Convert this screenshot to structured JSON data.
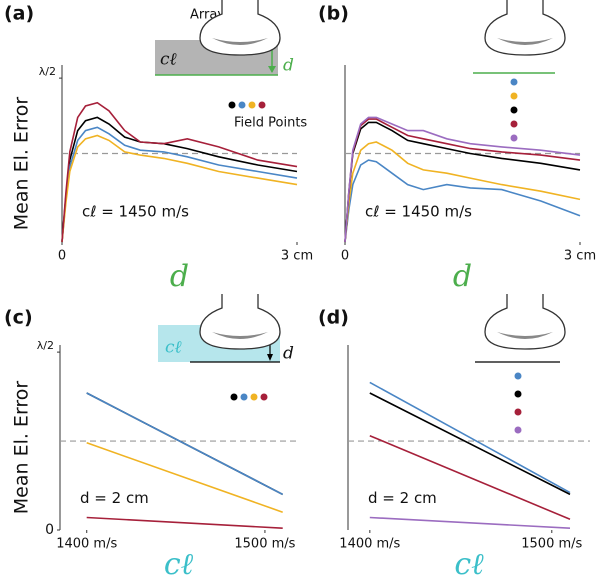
{
  "chart_data": [
    {
      "type": "line",
      "panel_label": "(a)",
      "ylabel": "Mean El. Error",
      "xlabel": "d",
      "xlabel_color": "#4cae4c",
      "annotation": "cℓ = 1450 m/s",
      "inset_labels": [
        "Array",
        "cℓ",
        "d",
        "Field Points"
      ],
      "x": [
        0,
        0.05,
        0.1,
        0.2,
        0.3,
        0.45,
        0.6,
        0.8,
        1.0,
        1.3,
        1.6,
        2.0,
        2.5,
        3.0
      ],
      "xlim": [
        0,
        3
      ],
      "ylim": [
        0,
        1.08
      ],
      "xticks": [
        {
          "value": 0,
          "label": "0"
        },
        {
          "value": 3,
          "label": "3 cm"
        }
      ],
      "yticks": [
        {
          "value": 1,
          "label": "λ/2"
        }
      ],
      "reference_line": 0.54,
      "series": [
        {
          "color": "#000000",
          "values": [
            0,
            0.28,
            0.5,
            0.68,
            0.74,
            0.76,
            0.72,
            0.64,
            0.61,
            0.6,
            0.57,
            0.52,
            0.47,
            0.43
          ]
        },
        {
          "color": "#4a86c5",
          "values": [
            0,
            0.26,
            0.46,
            0.62,
            0.68,
            0.7,
            0.66,
            0.59,
            0.56,
            0.55,
            0.52,
            0.47,
            0.43,
            0.39
          ]
        },
        {
          "color": "#f0b323",
          "values": [
            0,
            0.24,
            0.43,
            0.58,
            0.63,
            0.65,
            0.62,
            0.55,
            0.53,
            0.51,
            0.48,
            0.43,
            0.39,
            0.35
          ]
        },
        {
          "color": "#a6203a",
          "values": [
            0,
            0.3,
            0.55,
            0.76,
            0.83,
            0.85,
            0.8,
            0.68,
            0.61,
            0.6,
            0.63,
            0.58,
            0.5,
            0.46
          ]
        }
      ]
    },
    {
      "type": "line",
      "panel_label": "(b)",
      "xlabel": "d",
      "xlabel_color": "#4cae4c",
      "annotation": "cℓ = 1450 m/s",
      "x": [
        0,
        0.05,
        0.1,
        0.2,
        0.3,
        0.4,
        0.6,
        0.8,
        1.0,
        1.3,
        1.6,
        2.0,
        2.5,
        3.0
      ],
      "xlim": [
        0,
        3
      ],
      "ylim": [
        0,
        1.08
      ],
      "xticks": [
        {
          "value": 0,
          "label": "0"
        },
        {
          "value": 3,
          "label": "3 cm"
        }
      ],
      "yticks": [],
      "reference_line": 0.54,
      "series": [
        {
          "color": "#4a86c5",
          "values": [
            0,
            0.2,
            0.35,
            0.47,
            0.5,
            0.49,
            0.42,
            0.35,
            0.32,
            0.35,
            0.33,
            0.32,
            0.25,
            0.16
          ]
        },
        {
          "color": "#f0b323",
          "values": [
            0,
            0.24,
            0.42,
            0.56,
            0.6,
            0.61,
            0.56,
            0.48,
            0.44,
            0.42,
            0.39,
            0.35,
            0.31,
            0.26
          ]
        },
        {
          "color": "#000000",
          "values": [
            0,
            0.3,
            0.54,
            0.69,
            0.73,
            0.73,
            0.68,
            0.62,
            0.6,
            0.57,
            0.54,
            0.51,
            0.48,
            0.44
          ]
        },
        {
          "color": "#a6203a",
          "values": [
            0,
            0.31,
            0.55,
            0.71,
            0.75,
            0.75,
            0.7,
            0.65,
            0.63,
            0.6,
            0.57,
            0.55,
            0.53,
            0.5
          ]
        },
        {
          "color": "#9b6cc0",
          "values": [
            0,
            0.31,
            0.56,
            0.72,
            0.76,
            0.76,
            0.72,
            0.68,
            0.68,
            0.63,
            0.6,
            0.58,
            0.56,
            0.53
          ]
        }
      ]
    },
    {
      "type": "line",
      "panel_label": "(c)",
      "ylabel": "Mean El. Error",
      "xlabel": "cℓ",
      "xlabel_color": "#3bbfc9",
      "annotation": "d = 2 cm",
      "inset_labels": [
        "cℓ",
        "d"
      ],
      "x": [
        1400,
        1510
      ],
      "xlim": [
        1385,
        1518
      ],
      "ylim": [
        0,
        1.04
      ],
      "xticks": [
        {
          "value": 1400,
          "label": "1400 m/s"
        },
        {
          "value": 1500,
          "label": "1500 m/s"
        }
      ],
      "yticks": [
        0,
        {
          "value": 1,
          "label": "λ/2"
        }
      ],
      "reference_line": 0.5,
      "series": [
        {
          "color": "#000000",
          "values": [
            0.77,
            0.2
          ]
        },
        {
          "color": "#4a86c5",
          "values": [
            0.77,
            0.2
          ]
        },
        {
          "color": "#f0b323",
          "values": [
            0.49,
            0.1
          ]
        },
        {
          "color": "#a6203a",
          "values": [
            0.07,
            0.01
          ]
        }
      ]
    },
    {
      "type": "line",
      "panel_label": "(d)",
      "xlabel": "cℓ",
      "xlabel_color": "#3bbfc9",
      "annotation": "d = 2 cm",
      "x": [
        1400,
        1510
      ],
      "xlim": [
        1388,
        1521
      ],
      "ylim": [
        0,
        1.04
      ],
      "xticks": [
        {
          "value": 1400,
          "label": "1400 m/s"
        },
        {
          "value": 1500,
          "label": "1500 m/s"
        }
      ],
      "yticks": [],
      "reference_line": 0.5,
      "series": [
        {
          "color": "#4a86c5",
          "values": [
            0.83,
            0.21
          ]
        },
        {
          "color": "#000000",
          "values": [
            0.77,
            0.2
          ]
        },
        {
          "color": "#a6203a",
          "values": [
            0.53,
            0.06
          ]
        },
        {
          "color": "#9b6cc0",
          "values": [
            0.07,
            0.01
          ]
        }
      ]
    }
  ]
}
